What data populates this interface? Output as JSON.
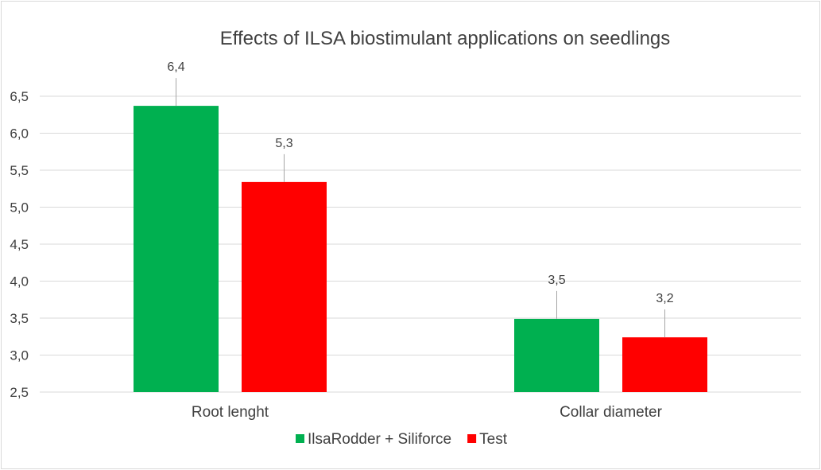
{
  "chart_data": {
    "type": "bar",
    "title": "Effects of ILSA biostimulant applications on seedlings",
    "categories": [
      "Root lenght",
      "Collar diameter"
    ],
    "series": [
      {
        "name": "IlsaRodder + Siliforce",
        "color": "#00b050",
        "values": [
          6.37,
          3.49
        ],
        "labels": [
          "6,4",
          "3,5"
        ]
      },
      {
        "name": "Test",
        "color": "#ff0000",
        "values": [
          5.34,
          3.24
        ],
        "labels": [
          "5,3",
          "3,2"
        ]
      }
    ],
    "ylim": [
      2.5,
      6.5
    ],
    "yticks": [
      "2,5",
      "3,0",
      "3,5",
      "4,0",
      "4,5",
      "5,0",
      "5,5",
      "6,0",
      "6,5"
    ],
    "xlabel": "",
    "ylabel": "",
    "grid": true,
    "legend_position": "bottom"
  }
}
